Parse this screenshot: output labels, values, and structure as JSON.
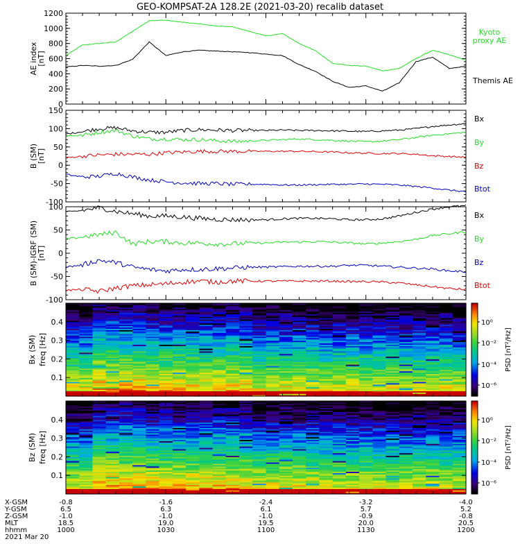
{
  "title": "GEO-KOMPSAT-2A 128.2E (2021-03-20) recalib dataset",
  "colors": {
    "black": "#000000",
    "green": "#22dd22",
    "red": "#dd0000",
    "blue": "#0000bb"
  },
  "chart_data": [
    {
      "type": "line",
      "ylabel": "AE index",
      "yunit": "[nT]",
      "ylim": [
        0,
        1200
      ],
      "yticks": [
        0,
        200,
        400,
        600,
        800,
        1000,
        1200
      ],
      "x_hhmm": [
        1000,
        1005,
        1010,
        1015,
        1020,
        1025,
        1030,
        1035,
        1040,
        1045,
        1050,
        1055,
        1100,
        1105,
        1110,
        1115,
        1120,
        1125,
        1130,
        1135,
        1140,
        1145,
        1150,
        1155,
        1200
      ],
      "series": [
        {
          "name": "Kyoto proxy AE",
          "color": "green",
          "label_lines": [
            "Kyoto",
            "proxy AE"
          ],
          "values": [
            640,
            780,
            800,
            820,
            960,
            1100,
            1110,
            1080,
            1060,
            1030,
            1020,
            960,
            900,
            930,
            800,
            700,
            540,
            510,
            500,
            440,
            470,
            600,
            710,
            650,
            580
          ]
        },
        {
          "name": "Themis AE",
          "color": "black",
          "label_lines": [
            "Themis AE"
          ],
          "values": [
            490,
            510,
            500,
            510,
            590,
            820,
            640,
            690,
            710,
            700,
            690,
            680,
            660,
            640,
            520,
            430,
            300,
            220,
            240,
            170,
            280,
            560,
            620,
            470,
            500
          ]
        }
      ]
    },
    {
      "type": "line",
      "ylabel": "B (SM)",
      "yunit": "[nT]",
      "ylim": [
        -100,
        150
      ],
      "yticks": [
        -100,
        -50,
        0,
        50,
        100,
        150
      ],
      "x_hhmm": [
        1000,
        1005,
        1010,
        1015,
        1020,
        1025,
        1030,
        1035,
        1040,
        1045,
        1050,
        1055,
        1100,
        1105,
        1110,
        1115,
        1120,
        1125,
        1130,
        1135,
        1140,
        1145,
        1150,
        1155,
        1200
      ],
      "series": [
        {
          "name": "Bx",
          "color": "black",
          "values": [
            85,
            92,
            100,
            102,
            94,
            90,
            90,
            95,
            97,
            96,
            95,
            95,
            95,
            96,
            95,
            95,
            94,
            93,
            92,
            94,
            96,
            100,
            106,
            110,
            114
          ]
        },
        {
          "name": "By",
          "color": "green",
          "values": [
            80,
            82,
            90,
            95,
            80,
            72,
            72,
            70,
            70,
            67,
            65,
            66,
            68,
            70,
            72,
            70,
            68,
            66,
            64,
            66,
            70,
            76,
            82,
            86,
            90
          ]
        },
        {
          "name": "Bz",
          "color": "red",
          "values": [
            20,
            25,
            28,
            30,
            30,
            30,
            34,
            36,
            38,
            38,
            38,
            38,
            38,
            38,
            38,
            37,
            36,
            34,
            33,
            32,
            32,
            30,
            26,
            24,
            22
          ]
        },
        {
          "name": "Btot",
          "color": "blue",
          "values": [
            -25,
            -32,
            -30,
            -22,
            -32,
            -40,
            -45,
            -48,
            -50,
            -50,
            -52,
            -52,
            -52,
            -54,
            -54,
            -53,
            -52,
            -52,
            -51,
            -52,
            -54,
            -58,
            -62,
            -68,
            -72
          ]
        }
      ]
    },
    {
      "type": "line",
      "ylabel": "B (SM)-IGRF (SM)",
      "yunit": "[nT]",
      "ylim": [
        -100,
        100
      ],
      "yticks": [
        -100,
        -50,
        0,
        50,
        100
      ],
      "x_hhmm": [
        1000,
        1005,
        1010,
        1015,
        1020,
        1025,
        1030,
        1035,
        1040,
        1045,
        1050,
        1055,
        1100,
        1105,
        1110,
        1115,
        1120,
        1125,
        1130,
        1135,
        1140,
        1145,
        1150,
        1155,
        1200
      ],
      "series": [
        {
          "name": "Bx",
          "color": "black",
          "values": [
            88,
            92,
            98,
            90,
            85,
            80,
            80,
            78,
            75,
            73,
            72,
            72,
            72,
            74,
            75,
            75,
            74,
            72,
            72,
            74,
            80,
            88,
            95,
            100,
            102
          ]
        },
        {
          "name": "By",
          "color": "green",
          "values": [
            30,
            35,
            40,
            45,
            20,
            25,
            25,
            22,
            22,
            20,
            20,
            22,
            22,
            24,
            24,
            25,
            24,
            22,
            20,
            22,
            25,
            30,
            38,
            42,
            46
          ]
        },
        {
          "name": "Bz",
          "color": "blue",
          "values": [
            -30,
            -25,
            -15,
            -20,
            -30,
            -35,
            -38,
            -35,
            -35,
            -33,
            -32,
            -30,
            -30,
            -29,
            -28,
            -28,
            -28,
            -26,
            -26,
            -28,
            -30,
            -32,
            -34,
            -38,
            -40
          ]
        },
        {
          "name": "Btot",
          "color": "red",
          "values": [
            -80,
            -78,
            -82,
            -75,
            -70,
            -68,
            -66,
            -62,
            -60,
            -62,
            -60,
            -60,
            -60,
            -60,
            -60,
            -60,
            -60,
            -61,
            -61,
            -62,
            -64,
            -68,
            -72,
            -76,
            -78
          ]
        }
      ]
    },
    {
      "type": "heatmap",
      "ylabel": "Bx (SM)",
      "ylabel2": "freq [Hz]",
      "ylim": [
        0,
        0.5
      ],
      "yticks": [
        0.1,
        0.2,
        0.3,
        0.4
      ],
      "ytick_labels": [
        "0.1",
        "0.2",
        "0.3",
        "0.4"
      ],
      "colorbar": {
        "label": "PSD [nT²/Hz]",
        "ticks": [
          "10⁰",
          "10⁻²",
          "10⁻⁴",
          "10⁻⁶"
        ]
      }
    },
    {
      "type": "heatmap",
      "ylabel": "Bz (SM)",
      "ylabel2": "freq [Hz]",
      "ylim": [
        0,
        0.5
      ],
      "yticks": [
        0.1,
        0.2,
        0.3,
        0.4
      ],
      "ytick_labels": [
        "0.1",
        "0.2",
        "0.3",
        "0.4"
      ],
      "colorbar": {
        "label": "PSD [nT²/Hz]",
        "ticks": [
          "10⁰",
          "10⁻²",
          "10⁻⁴",
          "10⁻⁶"
        ]
      }
    }
  ],
  "x_axis": {
    "ticks_hhmm": [
      1000,
      1030,
      1100,
      1130,
      1200
    ],
    "row_labels": [
      "X-GSM",
      "Y-GSM",
      "Z-GSM",
      "MLT",
      "hhmm"
    ],
    "rows": [
      [
        "-0.8",
        "-1.6",
        "-2.4",
        "-3.2",
        "-4.0"
      ],
      [
        "6.5",
        "6.3",
        "6.1",
        "5.7",
        "5.2"
      ],
      [
        "-1.0",
        "-1.0",
        "-1.0",
        "-0.9",
        "-0.8"
      ],
      [
        "18.5",
        "19.0",
        "19.5",
        "20.0",
        "20.5"
      ],
      [
        "1000",
        "1030",
        "1100",
        "1130",
        "1200"
      ]
    ],
    "date": "2021 Mar 20"
  }
}
